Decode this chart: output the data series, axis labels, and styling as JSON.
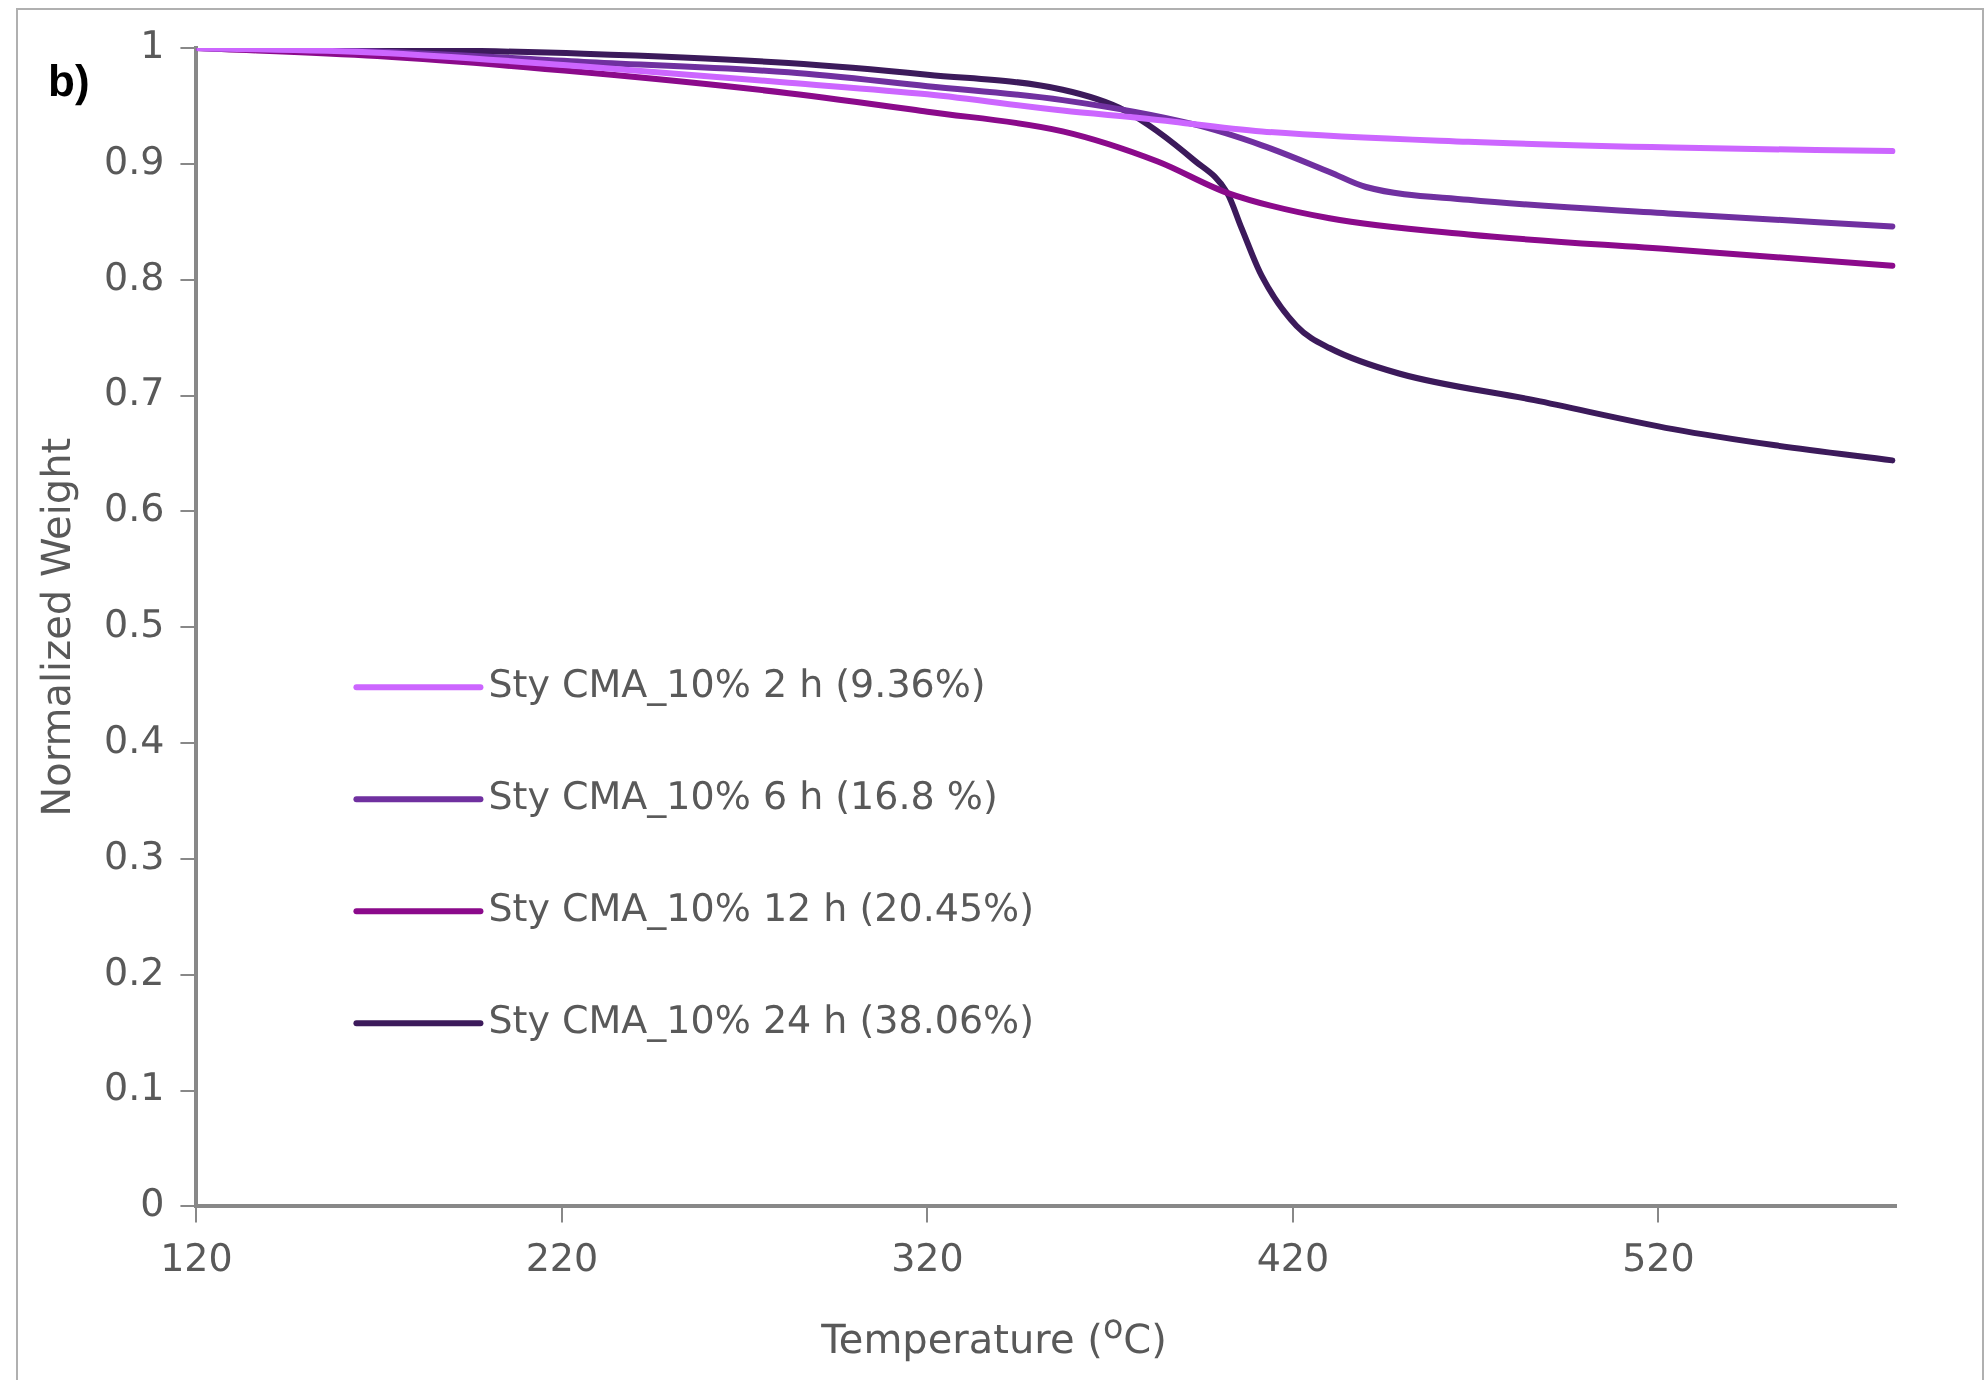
{
  "chart_data": {
    "type": "line",
    "annotations": [
      "b)"
    ],
    "xlabel": "Temperature ($^{o}$C)",
    "ylabel": "Normalized Weight",
    "xlim": [
      120,
      585
    ],
    "xticks": [
      120,
      220,
      320,
      420,
      520
    ],
    "ylim": [
      0,
      1
    ],
    "yticks": [
      0,
      0.1,
      0.2,
      0.3,
      0.4,
      0.5,
      0.6,
      0.7,
      0.8,
      0.9,
      1
    ],
    "grid": false,
    "legend": "center left",
    "marker": "none",
    "line_style": "solid",
    "series": [
      {
        "name": "Sty CMA_10% 2 h (9.36%)",
        "color": "#cc66ff",
        "x": [
          120,
          169.5,
          226,
          282,
          320,
          357,
          380,
          411.5,
          468,
          524,
          584
        ],
        "values": [
          1,
          0.996,
          0.984,
          0.97,
          0.96,
          0.946,
          0.939,
          0.928,
          0.919,
          0.914,
          0.911
        ]
      },
      {
        "name": "Sty CMA_10% 6 h (16.8 %)",
        "color": "#7030a0",
        "x": [
          120,
          169.5,
          226,
          282,
          320,
          357,
          393,
          411.5,
          430,
          440,
          468,
          524,
          584
        ],
        "values": [
          1,
          0.997,
          0.988,
          0.979,
          0.967,
          0.955,
          0.934,
          0.916,
          0.893,
          0.88,
          0.869,
          0.857,
          0.846
        ]
      },
      {
        "name": "Sty CMA_10% 12 h (20.45%)",
        "color": "#8b0a8b",
        "x": [
          120,
          169.5,
          226,
          282,
          320,
          357,
          383,
          402,
          430,
          468,
          524,
          584
        ],
        "values": [
          1,
          0.993,
          0.979,
          0.961,
          0.945,
          0.928,
          0.902,
          0.875,
          0.853,
          0.839,
          0.826,
          0.812
        ]
      },
      {
        "name": "Sty CMA_10% 24 h (38.06%)",
        "color": "#3c1a5b",
        "x": [
          120,
          169.5,
          226,
          282,
          320,
          357,
          374,
          393,
          402,
          406,
          411.5,
          421,
          430,
          449,
          486,
          524,
          552,
          584
        ],
        "values": [
          1,
          0.999,
          0.995,
          0.987,
          0.977,
          0.964,
          0.946,
          0.903,
          0.875,
          0.844,
          0.803,
          0.76,
          0.741,
          0.719,
          0.696,
          0.671,
          0.657,
          0.644
        ]
      }
    ]
  }
}
